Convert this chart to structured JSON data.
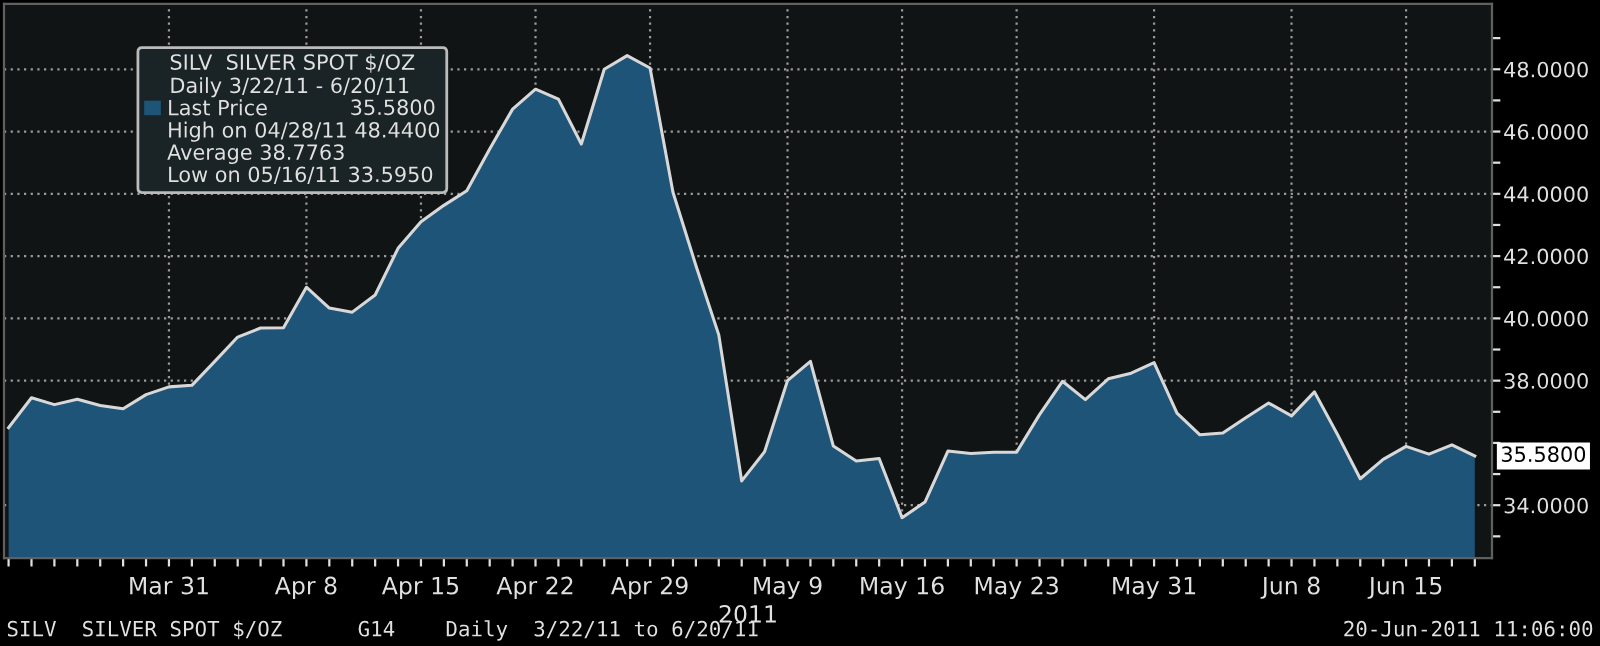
{
  "chart_data": {
    "type": "area",
    "categories": [
      null,
      null,
      null,
      null,
      null,
      null,
      null,
      "Mar 31",
      null,
      null,
      null,
      null,
      null,
      "Apr 8",
      null,
      null,
      null,
      null,
      "Apr 15",
      null,
      null,
      null,
      null,
      "Apr 22",
      null,
      null,
      null,
      null,
      "Apr 29",
      null,
      null,
      null,
      null,
      null,
      "May 9",
      null,
      null,
      null,
      null,
      "May 16",
      null,
      null,
      null,
      null,
      "May 23",
      null,
      null,
      null,
      null,
      null,
      "May 31",
      null,
      null,
      null,
      null,
      null,
      "Jun 8",
      null,
      null,
      null,
      null,
      "Jun 15",
      null,
      null,
      null
    ],
    "series": [
      {
        "name": "Last Price",
        "color": "#1e5478",
        "values": [
          36.49,
          37.45,
          37.23,
          37.4,
          37.2,
          37.1,
          37.55,
          37.8,
          37.85,
          38.62,
          39.4,
          39.69,
          39.7,
          41.0,
          40.33,
          40.2,
          40.75,
          42.25,
          43.1,
          43.63,
          44.1,
          45.44,
          46.72,
          47.36,
          47.04,
          45.6,
          48.0,
          48.44,
          48.04,
          44.05,
          41.7,
          39.47,
          34.78,
          35.72,
          38.0,
          38.62,
          35.9,
          35.42,
          35.5,
          33.6,
          34.1,
          35.74,
          35.66,
          35.7,
          35.7,
          36.91,
          37.98,
          37.39,
          38.06,
          38.24,
          38.58,
          36.96,
          36.26,
          36.32,
          36.81,
          37.28,
          36.87,
          37.64,
          36.28,
          34.85,
          35.47,
          35.89,
          35.64,
          35.94,
          35.58
        ]
      }
    ],
    "xlabel": "2011",
    "legend_title": "SILV  SILVER SPOT $/OZ\nDaily 3/22/11 - 6/20/11",
    "legend": "top left",
    "ylim": [
      32.3,
      50.1
    ],
    "yticks": [
      {
        "value": 33,
        "label": null
      },
      {
        "value": 34,
        "label": "34.0000"
      },
      {
        "value": 35,
        "label": null
      },
      {
        "value": 36,
        "label": null
      },
      {
        "value": 37,
        "label": null
      },
      {
        "value": 38,
        "label": "38.0000"
      },
      {
        "value": 39,
        "label": null
      },
      {
        "value": 40,
        "label": "40.0000"
      },
      {
        "value": 41,
        "label": null
      },
      {
        "value": 42,
        "label": "42.0000"
      },
      {
        "value": 43,
        "label": null
      },
      {
        "value": 44,
        "label": "44.0000"
      },
      {
        "value": 45,
        "label": null
      },
      {
        "value": 46,
        "label": "46.0000"
      },
      {
        "value": 47,
        "label": null
      },
      {
        "value": 48,
        "label": "48.0000"
      },
      {
        "value": 49,
        "label": null
      }
    ],
    "grid": true,
    "annotations": [
      "35.5800",
      "High on 04/28/11 48.4400",
      "Average 38.7763",
      "Low on 05/16/11 33.5950",
      "35.5800",
      "SILV  SILVER SPOT $/OZ      G14    Daily  3/22/11 to 6/20/11",
      "20-Jun-2011 11:06:00"
    ]
  }
}
